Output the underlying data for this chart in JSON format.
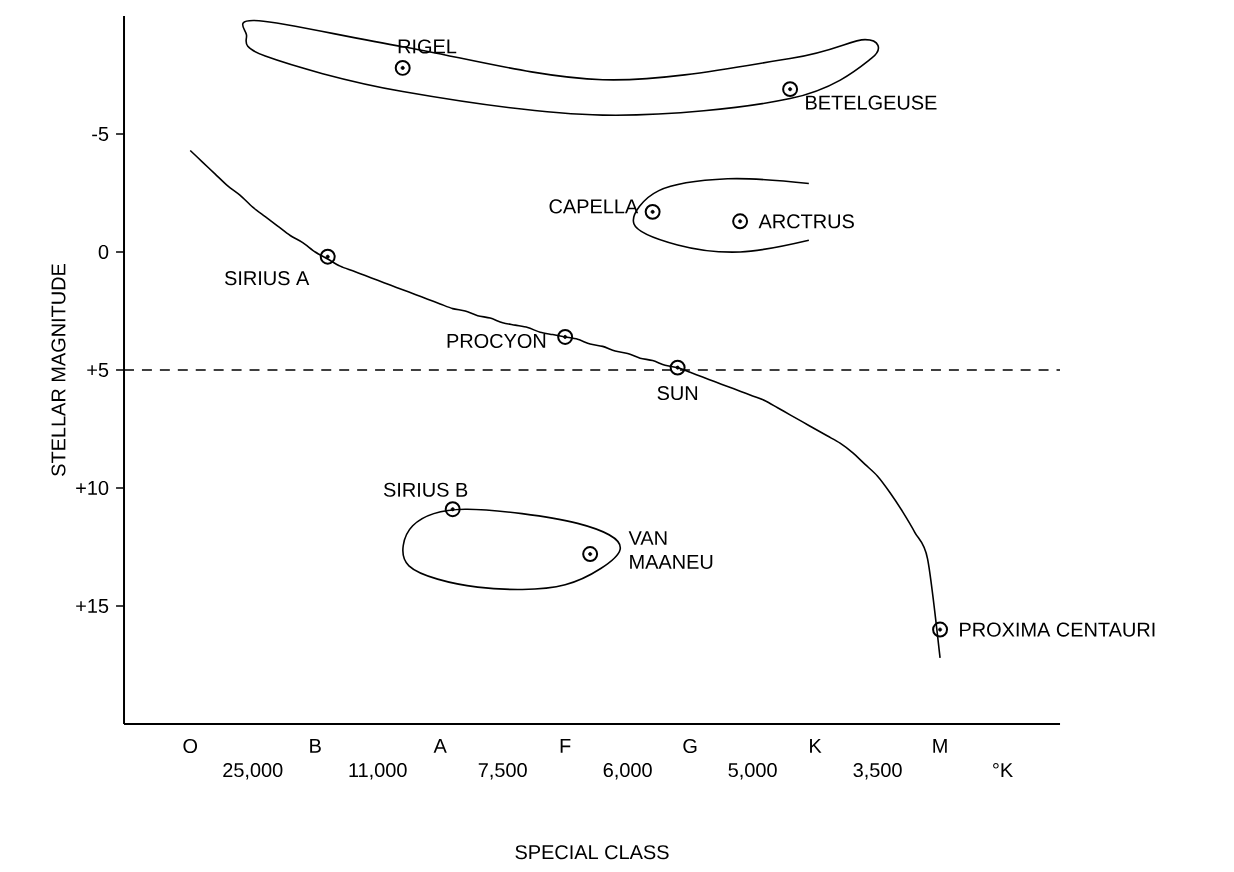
{
  "chart_data": {
    "type": "scatter",
    "xlabel": "SPECIAL CLASS",
    "ylabel": "STELLAR MAGNITUDE",
    "categories": [
      null,
      null,
      null,
      null,
      null,
      "O",
      null,
      null,
      null,
      null,
      "25,000",
      null,
      null,
      null,
      null,
      "B",
      null,
      null,
      null,
      null,
      "11,000",
      null,
      null,
      null,
      null,
      "A",
      null,
      null,
      null,
      null,
      "7,500",
      null,
      null,
      null,
      null,
      "F",
      null,
      null,
      null,
      null,
      "6,000",
      null,
      null,
      null,
      null,
      "G",
      null,
      null,
      null,
      null,
      "5,000",
      null,
      null,
      null,
      null,
      "K",
      null,
      null,
      null,
      null,
      "3,500",
      null,
      null,
      null,
      null,
      "M",
      null,
      null,
      null,
      null,
      "°K",
      null,
      null,
      null,
      null
    ],
    "ylim": [
      20,
      -10
    ],
    "yticks": [
      -5,
      0,
      {
        "value": 5,
        "label": "+5"
      },
      {
        "value": 10,
        "label": "+10"
      },
      {
        "value": 15,
        "label": "+15"
      }
    ],
    "marker": "circle",
    "grid": false,
    "series": [
      {
        "type": "line",
        "color": "#000000",
        "marker": "none",
        "values": [
          null,
          null,
          null,
          null,
          null,
          -4.3,
          -3.8,
          -3.3,
          -2.8,
          -2.4,
          -1.9,
          -1.5,
          -1.1,
          -0.7,
          -0.4,
          0.0,
          0.3,
          0.6,
          0.8,
          1.0,
          1.2,
          1.4,
          1.6,
          1.8,
          2.0,
          2.2,
          2.4,
          2.5,
          2.7,
          2.8,
          3.0,
          3.1,
          3.2,
          3.4,
          3.5,
          3.6,
          3.7,
          3.9,
          4.0,
          4.2,
          4.3,
          4.5,
          4.6,
          4.8,
          4.9,
          5.1,
          5.3,
          5.5,
          5.7,
          5.9,
          6.1,
          6.3,
          6.6,
          6.9,
          7.2,
          7.5,
          7.8,
          8.1,
          8.5,
          9.0,
          9.5,
          10.2,
          11.0,
          11.9,
          13.0,
          17.2,
          null,
          null,
          null,
          null,
          null,
          null,
          null,
          null,
          null
        ]
      },
      {
        "color": "#000000",
        "values": [
          null,
          null,
          null,
          null,
          null,
          null,
          null,
          null,
          null,
          null,
          null,
          null,
          null,
          null,
          null,
          null,
          0.2,
          null,
          null,
          null,
          null,
          null,
          -7.8,
          null,
          null,
          null,
          10.9,
          null,
          null,
          null,
          null,
          null,
          null,
          null,
          null,
          3.6,
          null,
          12.8,
          null,
          null,
          null,
          null,
          -1.7,
          null,
          4.9,
          null,
          null,
          null,
          null,
          -1.3,
          null,
          null,
          null,
          -6.9,
          null,
          null,
          null,
          null,
          null,
          null,
          null,
          null,
          null,
          null,
          null,
          16.0,
          null,
          null,
          null,
          null,
          null,
          null,
          null,
          null,
          null
        ]
      }
    ],
    "ref_lines": [
      {
        "axis": "y",
        "value": 5,
        "line_style": "dashed"
      }
    ],
    "annotations": [
      "SIRIUS A",
      "RIGEL",
      "SIRIUS B",
      "PROCYON",
      "VAN MAANEU",
      "CAPELLA",
      "SUN",
      "ARCTRUS",
      "BETELGEUSE",
      "PROXIMA CENTAURI"
    ]
  }
}
